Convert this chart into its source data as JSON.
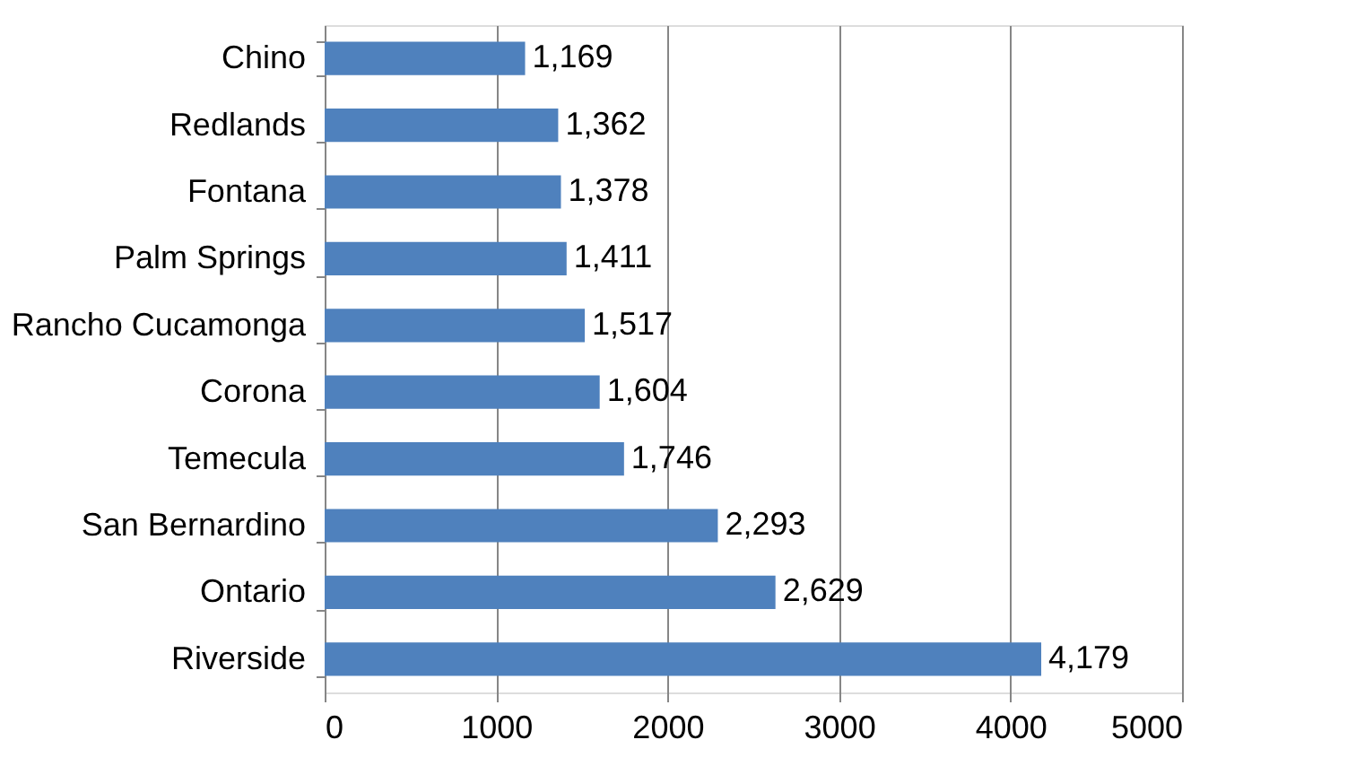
{
  "chart_data": {
    "type": "bar",
    "orientation": "horizontal",
    "categories": [
      "Chino",
      "Redlands",
      "Fontana",
      "Palm Springs",
      "Rancho Cucamonga",
      "Corona",
      "Temecula",
      "San Bernardino",
      "Ontario",
      "Riverside"
    ],
    "values": [
      1169,
      1362,
      1378,
      1411,
      1517,
      1604,
      1746,
      2293,
      2629,
      4179
    ],
    "color": "#4f81bd",
    "xlim": [
      0,
      5000
    ],
    "xticks": [
      0,
      1000,
      2000,
      3000,
      4000,
      5000
    ],
    "value_labels": [
      "1,169",
      "1,362",
      "1,378",
      "1,411",
      "1,517",
      "1,604",
      "1,746",
      "2,293",
      "2,629",
      "4,179"
    ],
    "grid": "x"
  }
}
